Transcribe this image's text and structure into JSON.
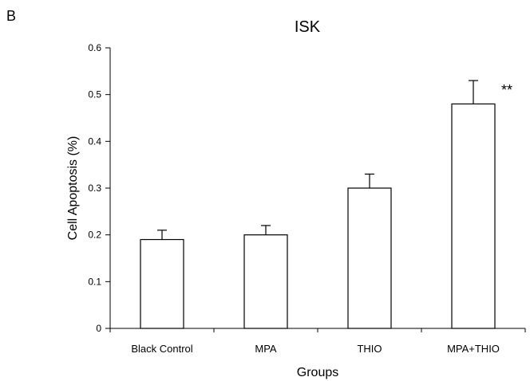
{
  "panel_label": "B",
  "chart_data": {
    "type": "bar",
    "title": "ISK",
    "xlabel": "Groups",
    "ylabel": "Cell Apoptosis (%)",
    "ylim": [
      0,
      0.6
    ],
    "yticks": [
      "0",
      "0.1",
      "0.2",
      "0.3",
      "0.4",
      "0.5",
      "0.6"
    ],
    "categories": [
      "Black Control",
      "MPA",
      "THIO",
      "MPA+THIO"
    ],
    "values": [
      0.19,
      0.2,
      0.3,
      0.48
    ],
    "errors": [
      0.02,
      0.02,
      0.03,
      0.05
    ],
    "significance": [
      "",
      "",
      "",
      "**"
    ],
    "grid": false,
    "legend": "none"
  }
}
